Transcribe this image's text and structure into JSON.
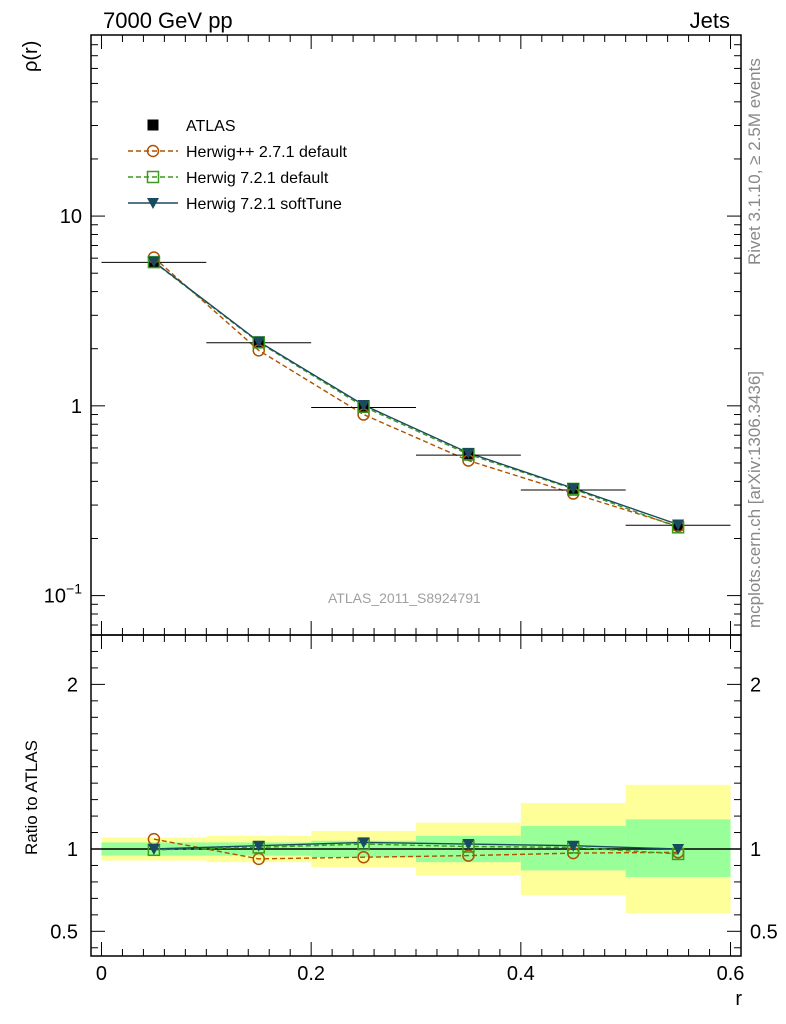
{
  "header": {
    "left_title": "7000 GeV pp",
    "right_title": "Jets"
  },
  "side_text": {
    "rivet": "Rivet 3.1.10, ≥ 2.5M events",
    "source": "mcplots.cern.ch [arXiv:1306.3436]"
  },
  "watermark": "ATLAS_2011_S8924791",
  "colors": {
    "atlas": "#000000",
    "herwigpp": "#b05000",
    "herwig_default": "#3c9a1e",
    "herwig_soft": "#1a4a60",
    "band_outer": "#ffff99",
    "band_inner": "#99ff99"
  },
  "chart_data": [
    {
      "type": "line",
      "panel": "main",
      "ylabel": "ρ(r)",
      "xlabel": "",
      "ylog": true,
      "xlim": [
        -0.01,
        0.61
      ],
      "ylim": [
        0.062,
        90
      ],
      "yticks": [
        {
          "value": 0.1,
          "base": "10",
          "exp": "−1"
        },
        {
          "value": 1,
          "base": "1",
          "exp": ""
        },
        {
          "value": 10,
          "base": "10",
          "exp": ""
        }
      ],
      "x": [
        0.05,
        0.15,
        0.25,
        0.35,
        0.45,
        0.55
      ],
      "xerr": 0.05,
      "series": [
        {
          "name": "ATLAS",
          "key": "atlas",
          "marker": "square-filled",
          "line": "none",
          "values": [
            5.7,
            2.15,
            0.98,
            0.55,
            0.36,
            0.235
          ]
        },
        {
          "name": "Herwig++ 2.7.1 default",
          "key": "herwigpp",
          "marker": "circle-open",
          "line": "dashed",
          "values": [
            6.05,
            1.96,
            0.9,
            0.515,
            0.345,
            0.232
          ]
        },
        {
          "name": "Herwig 7.2.1 default",
          "key": "herwig_default",
          "marker": "square-open",
          "line": "dashed",
          "values": [
            5.72,
            2.16,
            0.99,
            0.555,
            0.365,
            0.229
          ]
        },
        {
          "name": "Herwig 7.2.1 softTune",
          "key": "herwig_soft",
          "marker": "triangle-down",
          "line": "solid",
          "values": [
            5.75,
            2.18,
            1.01,
            0.565,
            0.368,
            0.237
          ]
        }
      ]
    },
    {
      "type": "line",
      "panel": "ratio",
      "ylabel": "Ratio to ATLAS",
      "xlabel": "r",
      "xlim": [
        -0.01,
        0.61
      ],
      "ylim": [
        0.35,
        2.3
      ],
      "yticks": [
        0.5,
        1,
        2
      ],
      "ytick_labels": [
        "0.5",
        "1",
        "2"
      ],
      "xticks": [
        0,
        0.2,
        0.4,
        0.6
      ],
      "xtick_labels": [
        "0",
        "0.2",
        "0.4",
        "0.6"
      ],
      "bins": [
        [
          0.0,
          0.1
        ],
        [
          0.1,
          0.2
        ],
        [
          0.2,
          0.3
        ],
        [
          0.3,
          0.4
        ],
        [
          0.4,
          0.5
        ],
        [
          0.5,
          0.6
        ]
      ],
      "band_outer": [
        [
          0.93,
          1.07
        ],
        [
          0.92,
          1.08
        ],
        [
          0.89,
          1.11
        ],
        [
          0.84,
          1.16
        ],
        [
          0.72,
          1.28
        ],
        [
          0.61,
          1.39
        ]
      ],
      "band_inner": [
        [
          0.96,
          1.04
        ],
        [
          0.96,
          1.04
        ],
        [
          0.95,
          1.05
        ],
        [
          0.92,
          1.08
        ],
        [
          0.87,
          1.14
        ],
        [
          0.83,
          1.18
        ]
      ],
      "x": [
        0.05,
        0.15,
        0.25,
        0.35,
        0.45,
        0.55
      ],
      "series": [
        {
          "name": "Herwig++ 2.7.1 default",
          "key": "herwigpp",
          "marker": "circle-open",
          "line": "dashed",
          "values": [
            1.06,
            0.94,
            0.95,
            0.96,
            0.975,
            0.98
          ]
        },
        {
          "name": "Herwig 7.2.1 default",
          "key": "herwig_default",
          "marker": "square-open",
          "line": "dashed",
          "values": [
            0.995,
            1.01,
            1.03,
            1.015,
            1.01,
            0.97
          ]
        },
        {
          "name": "Herwig 7.2.1 softTune",
          "key": "herwig_soft",
          "marker": "triangle-down",
          "line": "solid",
          "values": [
            1.0,
            1.02,
            1.04,
            1.03,
            1.02,
            1.0
          ]
        }
      ]
    }
  ]
}
